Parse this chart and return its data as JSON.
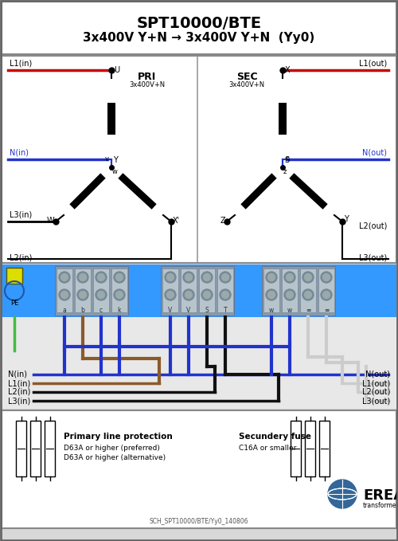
{
  "title1": "SPT10000/BTE",
  "title2": "3x400V Y+N → 3x400V Y+N  (Yy0)",
  "bg_color": "#d8d8d8",
  "box_bg": "#f0f0f0",
  "blue_bar_color": "#3399ff",
  "pri_label": "PRI",
  "sec_label": "SEC",
  "pri_sub": "3x400V+N",
  "sec_sub": "3x400V+N",
  "legend_left_title": "Primary line protection",
  "legend_left_lines": [
    "D63A or higher (preferred)",
    "D63A or higher (alternative)"
  ],
  "legend_right_title": "Secundery fuse",
  "legend_right_line": "C16A or smaller",
  "footer": "SCH_SPT10000/BTE/Yy0_140806",
  "erea_text": "EREA",
  "col_red": "#cc0000",
  "col_blue": "#2233cc",
  "col_brown": "#8b5a2b",
  "col_black": "#111111",
  "col_gray": "#aaaaaa",
  "col_green": "#44bb44",
  "col_lgray": "#cccccc"
}
